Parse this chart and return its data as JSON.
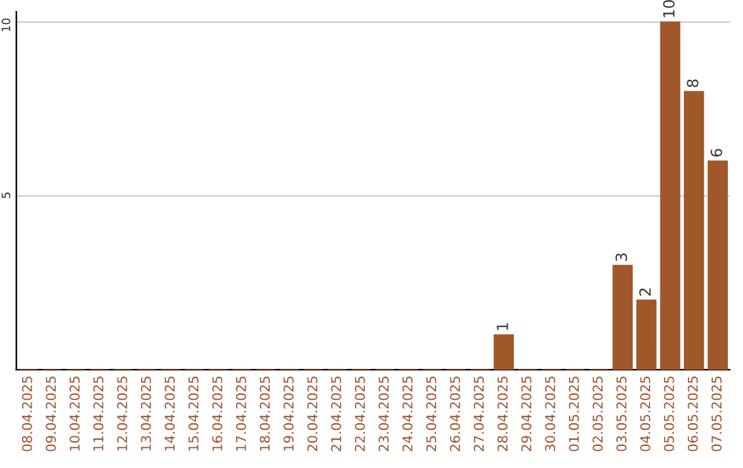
{
  "chart_data": {
    "type": "bar",
    "categories": [
      "08.04.2025",
      "09.04.2025",
      "10.04.2025",
      "11.04.2025",
      "12.04.2025",
      "13.04.2025",
      "14.04.2025",
      "15.04.2025",
      "16.04.2025",
      "17.04.2025",
      "18.04.2025",
      "19.04.2025",
      "20.04.2025",
      "21.04.2025",
      "22.04.2025",
      "23.04.2025",
      "24.04.2025",
      "25.04.2025",
      "26.04.2025",
      "27.04.2025",
      "28.04.2025",
      "29.04.2025",
      "30.04.2025",
      "01.05.2025",
      "02.05.2025",
      "03.05.2025",
      "04.05.2025",
      "05.05.2025",
      "06.05.2025",
      "07.05.2025"
    ],
    "values": [
      0,
      0,
      0,
      0,
      0,
      0,
      0,
      0,
      0,
      0,
      0,
      0,
      0,
      0,
      0,
      0,
      0,
      0,
      0,
      0,
      1,
      0,
      0,
      0,
      0,
      3,
      2,
      10,
      8,
      6
    ],
    "value_labels": [
      null,
      null,
      null,
      null,
      null,
      null,
      null,
      null,
      null,
      null,
      null,
      null,
      null,
      null,
      null,
      null,
      null,
      null,
      null,
      null,
      "1",
      null,
      null,
      null,
      null,
      "3",
      "2",
      "10",
      "8",
      "6"
    ],
    "color": "#a0582a",
    "ylim": [
      0,
      10.3
    ],
    "yticks": [
      5,
      10
    ],
    "grid": "y"
  }
}
